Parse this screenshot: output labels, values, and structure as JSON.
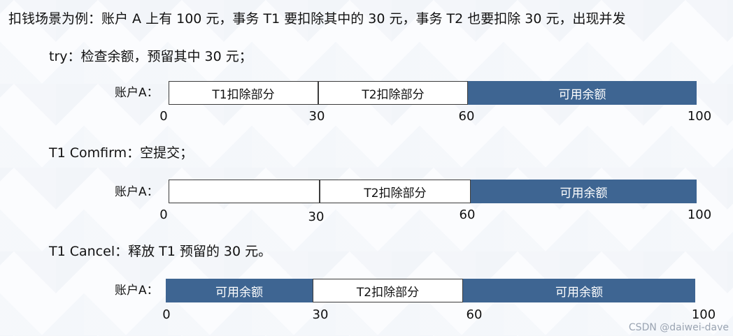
{
  "intro": "扣钱场景为例：账户 A 上有 100 元，事务 T1 要扣除其中的 30 元，事务 T2 也要扣除 30 元，出现并发",
  "sections": [
    {
      "heading": "try：检查余额，预留其中 30 元；",
      "account_label": "账户A：",
      "segments": [
        {
          "label": "T1扣除部分",
          "style": "white"
        },
        {
          "label": "T2扣除部分",
          "style": "white"
        },
        {
          "label": "可用余额",
          "style": "blue"
        }
      ],
      "ticks": [
        "0",
        "30",
        "60",
        "100"
      ]
    },
    {
      "heading": "T1 Comfirm：空提交；",
      "account_label": "账户A：",
      "segments": [
        {
          "label": "",
          "style": "white"
        },
        {
          "label": "T2扣除部分",
          "style": "white"
        },
        {
          "label": "可用余额",
          "style": "blue"
        }
      ],
      "ticks": [
        "0",
        "30",
        "60",
        "100"
      ]
    },
    {
      "heading": "T1 Cancel：释放 T1 预留的 30 元。",
      "account_label": "账户A：",
      "segments": [
        {
          "label": "可用余额",
          "style": "blue"
        },
        {
          "label": "T2扣除部分",
          "style": "white"
        },
        {
          "label": "可用余额",
          "style": "blue"
        }
      ],
      "ticks": [
        "0",
        "30",
        "60",
        "100"
      ]
    }
  ],
  "watermark": "CSDN @daiwei-dave"
}
